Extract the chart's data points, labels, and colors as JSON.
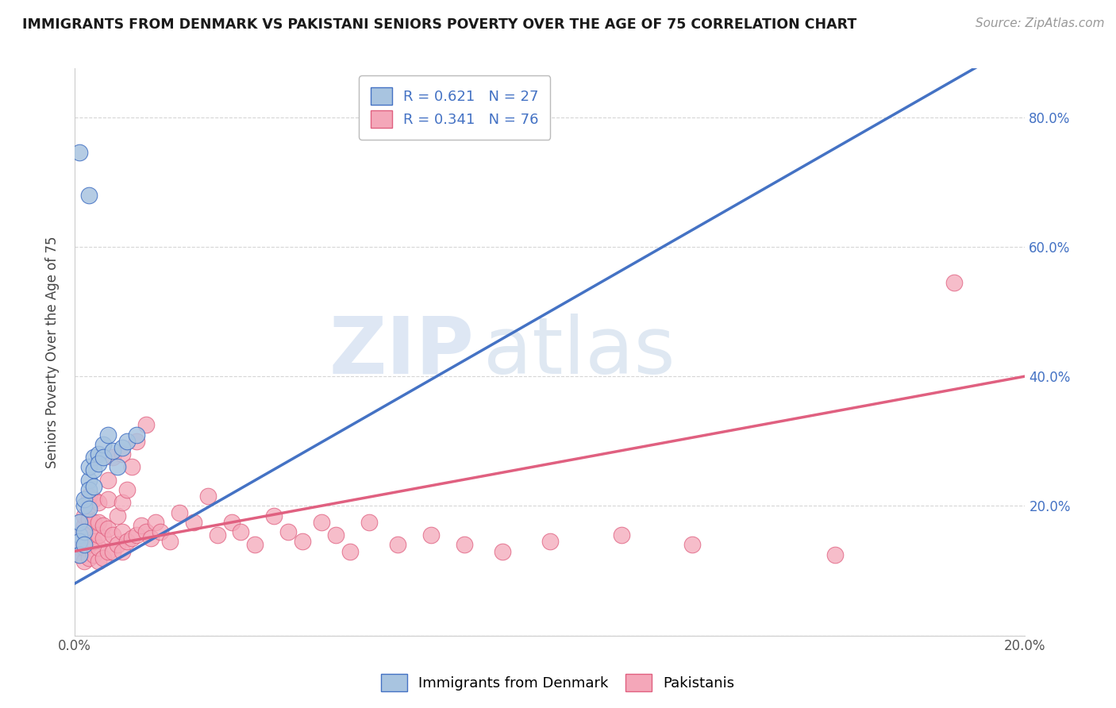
{
  "title": "IMMIGRANTS FROM DENMARK VS PAKISTANI SENIORS POVERTY OVER THE AGE OF 75 CORRELATION CHART",
  "source": "Source: ZipAtlas.com",
  "ylabel": "Seniors Poverty Over the Age of 75",
  "xlim": [
    0.0,
    0.2
  ],
  "ylim": [
    0.0,
    0.875
  ],
  "yticks": [
    0.0,
    0.2,
    0.4,
    0.6,
    0.8
  ],
  "ytick_labels": [
    "",
    "20.0%",
    "40.0%",
    "60.0%",
    "80.0%"
  ],
  "xticks": [
    0.0,
    0.05,
    0.1,
    0.15,
    0.2
  ],
  "xtick_labels": [
    "0.0%",
    "",
    "",
    "",
    "20.0%"
  ],
  "blue_R": 0.621,
  "blue_N": 27,
  "pink_R": 0.341,
  "pink_N": 76,
  "blue_color": "#a8c4e0",
  "blue_line_color": "#4472c4",
  "pink_color": "#f4a7b9",
  "pink_line_color": "#e06080",
  "legend_label_1": "Immigrants from Denmark",
  "legend_label_2": "Pakistanis",
  "watermark_zip": "ZIP",
  "watermark_atlas": "atlas",
  "blue_scatter_x": [
    0.001,
    0.001,
    0.001,
    0.001,
    0.002,
    0.002,
    0.002,
    0.002,
    0.003,
    0.003,
    0.003,
    0.003,
    0.004,
    0.004,
    0.004,
    0.005,
    0.005,
    0.006,
    0.006,
    0.007,
    0.008,
    0.009,
    0.01,
    0.011,
    0.013,
    0.003,
    0.001
  ],
  "blue_scatter_y": [
    0.155,
    0.175,
    0.145,
    0.125,
    0.16,
    0.14,
    0.2,
    0.21,
    0.24,
    0.26,
    0.225,
    0.195,
    0.275,
    0.255,
    0.23,
    0.28,
    0.265,
    0.295,
    0.275,
    0.31,
    0.285,
    0.26,
    0.29,
    0.3,
    0.31,
    0.68,
    0.745
  ],
  "pink_scatter_x": [
    0.001,
    0.001,
    0.001,
    0.001,
    0.002,
    0.002,
    0.002,
    0.002,
    0.002,
    0.003,
    0.003,
    0.003,
    0.003,
    0.003,
    0.003,
    0.004,
    0.004,
    0.004,
    0.004,
    0.005,
    0.005,
    0.005,
    0.005,
    0.005,
    0.006,
    0.006,
    0.006,
    0.007,
    0.007,
    0.007,
    0.007,
    0.008,
    0.008,
    0.008,
    0.009,
    0.009,
    0.01,
    0.01,
    0.01,
    0.01,
    0.011,
    0.011,
    0.012,
    0.012,
    0.013,
    0.013,
    0.014,
    0.015,
    0.015,
    0.016,
    0.017,
    0.018,
    0.02,
    0.022,
    0.025,
    0.028,
    0.03,
    0.033,
    0.035,
    0.038,
    0.042,
    0.045,
    0.048,
    0.052,
    0.055,
    0.058,
    0.062,
    0.068,
    0.075,
    0.082,
    0.09,
    0.1,
    0.115,
    0.13,
    0.16,
    0.185
  ],
  "pink_scatter_y": [
    0.135,
    0.155,
    0.125,
    0.145,
    0.115,
    0.135,
    0.155,
    0.17,
    0.185,
    0.12,
    0.14,
    0.16,
    0.18,
    0.2,
    0.215,
    0.125,
    0.145,
    0.175,
    0.21,
    0.115,
    0.135,
    0.155,
    0.175,
    0.205,
    0.12,
    0.15,
    0.17,
    0.13,
    0.165,
    0.21,
    0.24,
    0.13,
    0.155,
    0.275,
    0.14,
    0.185,
    0.13,
    0.16,
    0.205,
    0.28,
    0.145,
    0.225,
    0.15,
    0.26,
    0.155,
    0.3,
    0.17,
    0.16,
    0.325,
    0.15,
    0.175,
    0.16,
    0.145,
    0.19,
    0.175,
    0.215,
    0.155,
    0.175,
    0.16,
    0.14,
    0.185,
    0.16,
    0.145,
    0.175,
    0.155,
    0.13,
    0.175,
    0.14,
    0.155,
    0.14,
    0.13,
    0.145,
    0.155,
    0.14,
    0.125,
    0.545
  ]
}
